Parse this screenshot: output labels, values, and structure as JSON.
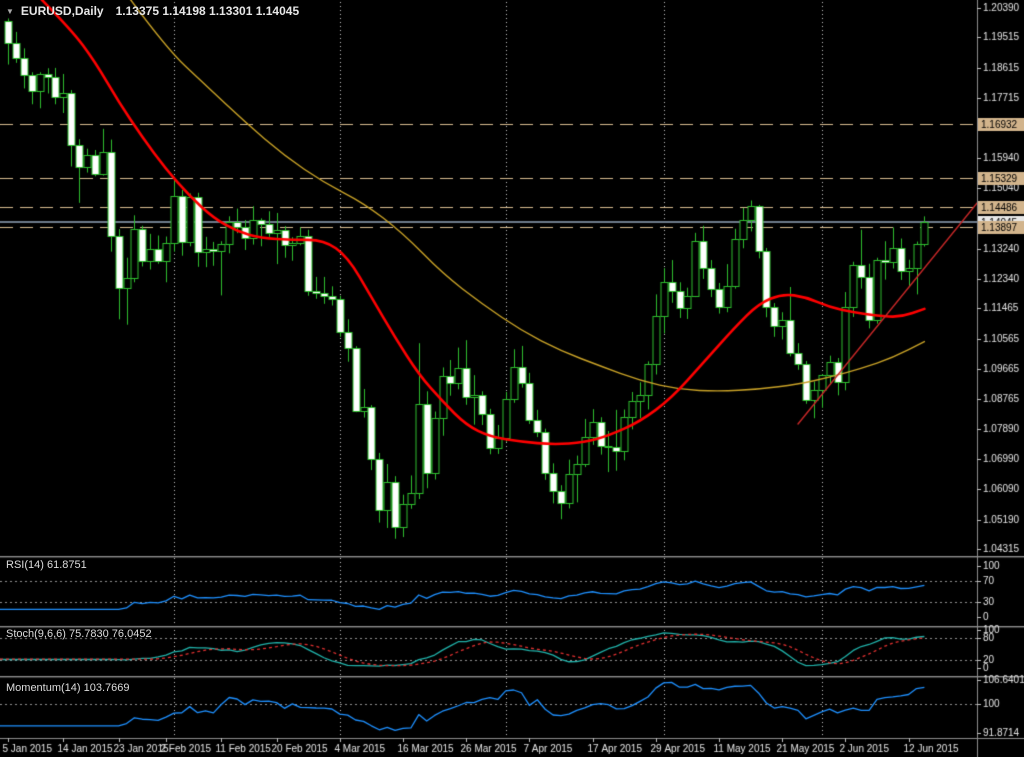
{
  "window": {
    "title_symbol": "EURUSD,Daily",
    "title_ohlc": "1.13375 1.14198 1.13301 1.14045",
    "dropdown_icon": "▼"
  },
  "panels": {
    "rsi": {
      "label": "RSI(14) 61.8751",
      "axis_labels": [
        "100",
        "70",
        "30",
        "0"
      ],
      "level_lines": [
        70,
        30
      ],
      "value": 61.8751
    },
    "stoch": {
      "label": "Stoch(9,6,6) 75.7830 76.0452",
      "axis_labels": [
        "100",
        "80",
        "20",
        "0"
      ],
      "level_lines": [
        80,
        20
      ],
      "values": [
        75.783,
        76.0452
      ]
    },
    "momentum": {
      "label": "Momentum(14) 103.7669",
      "axis_labels": [
        "106.6401",
        "100",
        "91.8714"
      ],
      "level_lines": [
        100
      ],
      "value": 103.7669,
      "range": [
        91.8714,
        106.6401
      ]
    }
  },
  "chart_data": {
    "type": "candlestick",
    "symbol": "EURUSD",
    "timeframe": "Daily",
    "y_axis": {
      "min": 1.04315,
      "max": 1.2039,
      "ticks": [
        "1.20390",
        "1.19515",
        "1.18615",
        "1.17715",
        "1.15940",
        "1.15040",
        "1.13240",
        "1.12340",
        "1.11465",
        "1.10565",
        "1.09665",
        "1.08765",
        "1.07890",
        "1.06990",
        "1.06090",
        "1.05190",
        "1.04315"
      ]
    },
    "price_levels": [
      {
        "label": "1.16932",
        "price": 1.16932
      },
      {
        "label": "1.15329",
        "price": 1.15329
      },
      {
        "label": "1.14486",
        "price": 1.14486
      },
      {
        "label": "1.13897",
        "price": 1.13897
      }
    ],
    "current_price": {
      "label": "1.14045",
      "price": 1.14045
    },
    "x_labels": [
      {
        "i": 0,
        "t": "5 Jan 2015"
      },
      {
        "i": 7,
        "t": "14 Jan 2015"
      },
      {
        "i": 14,
        "t": "23 Jan 2015"
      },
      {
        "i": 20,
        "t": "2 Feb 2015"
      },
      {
        "i": 27,
        "t": "11 Feb 2015"
      },
      {
        "i": 34,
        "t": "20 Feb 2015"
      },
      {
        "i": 42,
        "t": "4 Mar 2015"
      },
      {
        "i": 50,
        "t": "16 Mar 2015"
      },
      {
        "i": 58,
        "t": "26 Mar 2015"
      },
      {
        "i": 66,
        "t": "7 Apr 2015"
      },
      {
        "i": 74,
        "t": "17 Apr 2015"
      },
      {
        "i": 82,
        "t": "29 Apr 2015"
      },
      {
        "i": 90,
        "t": "11 May 2015"
      },
      {
        "i": 98,
        "t": "21 May 2015"
      },
      {
        "i": 106,
        "t": "2 Jun 2015"
      },
      {
        "i": 114,
        "t": "12 Jun 2015"
      }
    ],
    "month_separator_indices": [
      21,
      42,
      63,
      83,
      103
    ],
    "candles": [
      [
        1.2001,
        1.2008,
        1.1871,
        1.1936
      ],
      [
        1.1936,
        1.1968,
        1.1876,
        1.1891
      ],
      [
        1.1891,
        1.1919,
        1.18,
        1.1841
      ],
      [
        1.1841,
        1.1848,
        1.1753,
        1.1793
      ],
      [
        1.1793,
        1.1848,
        1.1741,
        1.1843
      ],
      [
        1.1843,
        1.186,
        1.1785,
        1.1835
      ],
      [
        1.1835,
        1.1861,
        1.1753,
        1.1776
      ],
      [
        1.1776,
        1.1843,
        1.1727,
        1.1786
      ],
      [
        1.1786,
        1.1795,
        1.1568,
        1.1632
      ],
      [
        1.1632,
        1.1649,
        1.146,
        1.1567
      ],
      [
        1.1567,
        1.1621,
        1.155,
        1.1601
      ],
      [
        1.1601,
        1.1617,
        1.1539,
        1.1547
      ],
      [
        1.1547,
        1.168,
        1.1541,
        1.1611
      ],
      [
        1.1611,
        1.1648,
        1.1315,
        1.1362
      ],
      [
        1.1362,
        1.1382,
        1.1114,
        1.1206
      ],
      [
        1.1206,
        1.1297,
        1.1098,
        1.1238
      ],
      [
        1.1238,
        1.1423,
        1.1224,
        1.1381
      ],
      [
        1.1381,
        1.1392,
        1.1271,
        1.1287
      ],
      [
        1.1287,
        1.1368,
        1.1262,
        1.1322
      ],
      [
        1.1322,
        1.1363,
        1.1279,
        1.1288
      ],
      [
        1.1288,
        1.136,
        1.1224,
        1.1341
      ],
      [
        1.1341,
        1.1533,
        1.1315,
        1.1479
      ],
      [
        1.1479,
        1.1498,
        1.1303,
        1.1343
      ],
      [
        1.1343,
        1.1488,
        1.1331,
        1.1477
      ],
      [
        1.1477,
        1.149,
        1.127,
        1.1315
      ],
      [
        1.1315,
        1.1359,
        1.1269,
        1.1324
      ],
      [
        1.1324,
        1.1344,
        1.1273,
        1.1318
      ],
      [
        1.1318,
        1.1346,
        1.1185,
        1.1339
      ],
      [
        1.1339,
        1.142,
        1.131,
        1.1404
      ],
      [
        1.1404,
        1.1443,
        1.137,
        1.1389
      ],
      [
        1.1389,
        1.1409,
        1.132,
        1.1355
      ],
      [
        1.1355,
        1.145,
        1.1336,
        1.141
      ],
      [
        1.141,
        1.1414,
        1.1331,
        1.1398
      ],
      [
        1.1398,
        1.1435,
        1.1359,
        1.137
      ],
      [
        1.137,
        1.143,
        1.1278,
        1.1379
      ],
      [
        1.1379,
        1.1391,
        1.1297,
        1.1335
      ],
      [
        1.1335,
        1.1358,
        1.1288,
        1.1341
      ],
      [
        1.1341,
        1.1387,
        1.1334,
        1.1362
      ],
      [
        1.1362,
        1.138,
        1.1184,
        1.1197
      ],
      [
        1.1197,
        1.124,
        1.1175,
        1.1193
      ],
      [
        1.1193,
        1.124,
        1.116,
        1.1183
      ],
      [
        1.1183,
        1.1212,
        1.1155,
        1.1175
      ],
      [
        1.1175,
        1.1184,
        1.1062,
        1.1077
      ],
      [
        1.1077,
        1.1114,
        1.0988,
        1.1029
      ],
      [
        1.1029,
        1.1034,
        1.0838,
        1.0843
      ],
      [
        1.0843,
        1.0907,
        1.0822,
        1.0852
      ],
      [
        1.0852,
        1.0859,
        1.0666,
        1.07
      ],
      [
        1.07,
        1.0717,
        1.051,
        1.0548
      ],
      [
        1.0548,
        1.0684,
        1.0494,
        1.0632
      ],
      [
        1.0632,
        1.0648,
        1.0462,
        1.0497
      ],
      [
        1.0497,
        1.0593,
        1.0467,
        1.0565
      ],
      [
        1.0565,
        1.065,
        1.0551,
        1.0598
      ],
      [
        1.0598,
        1.1043,
        1.058,
        1.0862
      ],
      [
        1.0862,
        1.09,
        1.0612,
        1.0658
      ],
      [
        1.0658,
        1.084,
        1.0638,
        1.0822
      ],
      [
        1.0822,
        1.0971,
        1.0768,
        1.0945
      ],
      [
        1.0945,
        1.0993,
        1.0887,
        1.0926
      ],
      [
        1.0926,
        1.103,
        1.0906,
        1.097
      ],
      [
        1.097,
        1.1052,
        1.086,
        1.0883
      ],
      [
        1.0883,
        1.0948,
        1.0801,
        1.089
      ],
      [
        1.089,
        1.09,
        1.08,
        1.0832
      ],
      [
        1.0832,
        1.0848,
        1.0713,
        1.0731
      ],
      [
        1.0731,
        1.08,
        1.0714,
        1.0762
      ],
      [
        1.0762,
        1.0898,
        1.075,
        1.0876
      ],
      [
        1.0876,
        1.1025,
        1.0866,
        1.0972
      ],
      [
        1.0972,
        1.1035,
        1.0911,
        1.0925
      ],
      [
        1.0925,
        1.0955,
        1.0803,
        1.0815
      ],
      [
        1.0815,
        1.0845,
        1.0764,
        1.0778
      ],
      [
        1.0778,
        1.0789,
        1.0637,
        1.0658
      ],
      [
        1.0658,
        1.0686,
        1.0567,
        1.0604
      ],
      [
        1.0604,
        1.0621,
        1.052,
        1.0567
      ],
      [
        1.0567,
        1.0697,
        1.0552,
        1.0654
      ],
      [
        1.0654,
        1.0709,
        1.057,
        1.0684
      ],
      [
        1.0684,
        1.0818,
        1.0675,
        1.0765
      ],
      [
        1.0765,
        1.0847,
        1.0741,
        1.0808
      ],
      [
        1.0808,
        1.0823,
        1.0712,
        1.0739
      ],
      [
        1.0739,
        1.0782,
        1.066,
        1.0735
      ],
      [
        1.0735,
        1.0845,
        1.0664,
        1.0724
      ],
      [
        1.0724,
        1.0846,
        1.0695,
        1.0823
      ],
      [
        1.0823,
        1.0898,
        1.0787,
        1.0871
      ],
      [
        1.0871,
        1.0927,
        1.082,
        1.089
      ],
      [
        1.089,
        1.0989,
        1.0846,
        1.0982
      ],
      [
        1.0982,
        1.1188,
        1.095,
        1.1125
      ],
      [
        1.1125,
        1.1266,
        1.1072,
        1.1224
      ],
      [
        1.1224,
        1.129,
        1.1163,
        1.1198
      ],
      [
        1.1198,
        1.1224,
        1.1118,
        1.1147
      ],
      [
        1.1147,
        1.1208,
        1.1115,
        1.1184
      ],
      [
        1.1184,
        1.1371,
        1.118,
        1.1347
      ],
      [
        1.1347,
        1.1392,
        1.1234,
        1.1267
      ],
      [
        1.1267,
        1.129,
        1.118,
        1.1203
      ],
      [
        1.1203,
        1.1222,
        1.1131,
        1.1152
      ],
      [
        1.1152,
        1.1278,
        1.1135,
        1.1213
      ],
      [
        1.1213,
        1.1383,
        1.1205,
        1.1353
      ],
      [
        1.1353,
        1.1445,
        1.1325,
        1.141
      ],
      [
        1.141,
        1.1467,
        1.1375,
        1.145
      ],
      [
        1.145,
        1.1454,
        1.1295,
        1.1316
      ],
      [
        1.1316,
        1.1326,
        1.112,
        1.115
      ],
      [
        1.115,
        1.1162,
        1.1062,
        1.1093
      ],
      [
        1.1093,
        1.1135,
        1.1054,
        1.1112
      ],
      [
        1.1112,
        1.121,
        1.1004,
        1.1014
      ],
      [
        1.1014,
        1.1043,
        1.0964,
        1.098
      ],
      [
        1.098,
        1.099,
        1.0863,
        1.0874
      ],
      [
        1.0874,
        1.0929,
        1.082,
        1.0905
      ],
      [
        1.0905,
        1.0951,
        1.0851,
        1.0949
      ],
      [
        1.0949,
        1.1006,
        1.092,
        1.0987
      ],
      [
        1.0987,
        1.0999,
        1.0888,
        1.0928
      ],
      [
        1.0928,
        1.1195,
        1.0903,
        1.1152
      ],
      [
        1.1152,
        1.1285,
        1.1121,
        1.1276
      ],
      [
        1.1276,
        1.138,
        1.1205,
        1.124
      ],
      [
        1.124,
        1.1279,
        1.1087,
        1.1113
      ],
      [
        1.1113,
        1.1297,
        1.1101,
        1.1289
      ],
      [
        1.1289,
        1.1346,
        1.1232,
        1.1283
      ],
      [
        1.1283,
        1.1387,
        1.1265,
        1.1325
      ],
      [
        1.1325,
        1.1354,
        1.1231,
        1.1259
      ],
      [
        1.1259,
        1.1291,
        1.121,
        1.1265
      ],
      [
        1.1265,
        1.1345,
        1.1188,
        1.1337
      ],
      [
        1.13375,
        1.14198,
        1.13301,
        1.14045
      ]
    ],
    "overlays": {
      "ma_red": [
        [
          4,
          1.207
        ],
        [
          8,
          1.1975
        ],
        [
          11,
          1.188
        ],
        [
          14,
          1.176
        ],
        [
          17,
          1.1655
        ],
        [
          20,
          1.156
        ],
        [
          23,
          1.148
        ],
        [
          26,
          1.1415
        ],
        [
          29,
          1.1375
        ],
        [
          32,
          1.1355
        ],
        [
          36,
          1.135
        ],
        [
          40,
          1.135
        ],
        [
          43,
          1.13
        ],
        [
          46,
          1.118
        ],
        [
          49,
          1.106
        ],
        [
          52,
          1.095
        ],
        [
          55,
          1.087
        ],
        [
          58,
          1.08
        ],
        [
          61,
          1.0765
        ],
        [
          65,
          1.075
        ],
        [
          69,
          1.0742
        ],
        [
          73,
          1.0748
        ],
        [
          76,
          1.0768
        ],
        [
          80,
          1.081
        ],
        [
          84,
          1.088
        ],
        [
          88,
          1.0985
        ],
        [
          92,
          1.109
        ],
        [
          95,
          1.116
        ],
        [
          98,
          1.119
        ],
        [
          101,
          1.118
        ],
        [
          104,
          1.115
        ],
        [
          107,
          1.1135
        ],
        [
          110,
          1.1125
        ],
        [
          113,
          1.112
        ],
        [
          116,
          1.1145
        ]
      ],
      "ma_yellow": [
        [
          15,
          1.208
        ],
        [
          20,
          1.192
        ],
        [
          25,
          1.181
        ],
        [
          30,
          1.17
        ],
        [
          35,
          1.16
        ],
        [
          40,
          1.152
        ],
        [
          45,
          1.146
        ],
        [
          50,
          1.137
        ],
        [
          55,
          1.125
        ],
        [
          60,
          1.116
        ],
        [
          65,
          1.108
        ],
        [
          70,
          1.102
        ],
        [
          75,
          1.0975
        ],
        [
          80,
          1.0932
        ],
        [
          85,
          1.0905
        ],
        [
          90,
          1.09
        ],
        [
          95,
          1.0906
        ],
        [
          100,
          1.0921
        ],
        [
          104,
          1.0942
        ],
        [
          108,
          1.0968
        ],
        [
          112,
          1.1
        ],
        [
          116,
          1.1048
        ]
      ],
      "trendline": [
        [
          100,
          1.0803
        ],
        [
          123,
          1.1469
        ]
      ]
    },
    "indicator_settings": {
      "rsi_period": 14,
      "stoch": [
        9,
        6,
        6
      ],
      "momentum_period": 14
    },
    "colors": {
      "background": "#000000",
      "candle_outline": "#2EBD2E",
      "bull_fill": "#000000",
      "bear_fill": "#FFFFFF",
      "ma_red": "#FF0000",
      "ma_yellow": "#C9A227",
      "trendline": "#C82828",
      "level_line": "#D8BC90",
      "level_badge": "#D2B48C",
      "price_line": "#6E7B8B",
      "current_badge": "#E6E6E6",
      "grid_dotted": "#C8C8C8",
      "rsi_line": "#1E90FF",
      "stoch_main": "#20B2AA",
      "stoch_signal": "#E03030",
      "momentum_line": "#1E90FF",
      "panel_level": "#909090",
      "axis_text": "#E4E4E4",
      "separator": "#8E8E8E"
    }
  }
}
